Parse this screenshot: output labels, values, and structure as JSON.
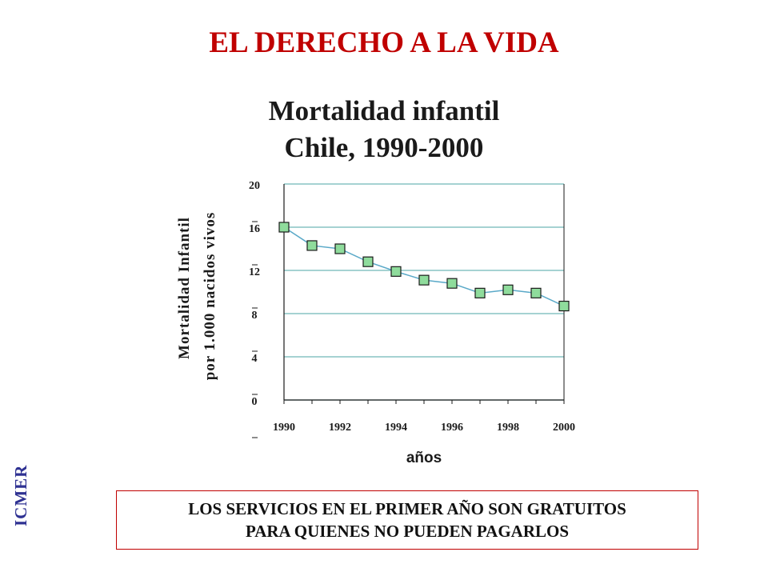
{
  "slide": {
    "title": "EL DERECHO A LA VIDA",
    "side_label": "ICMER",
    "note_line1": "LOS SERVICIOS EN EL PRIMER AÑO SON GRATUITOS",
    "note_line2": "PARA QUIENES NO PUEDEN PAGARLOS",
    "colors": {
      "title": "#c00000",
      "side_label": "#2e3192",
      "box_border": "#c00000"
    }
  },
  "chart_data": {
    "type": "line",
    "title_line1": "Mortalidad  infantil",
    "title_line2": "Chile, 1990-2000",
    "ylabel_line1": "Mortalidad Infantil",
    "ylabel_line2": "por 1.000 nacidos vivos",
    "xlabel": "años",
    "x": [
      1990,
      1991,
      1992,
      1993,
      1994,
      1995,
      1996,
      1997,
      1998,
      1999,
      2000
    ],
    "xticks": [
      "1990",
      "1992",
      "1994",
      "1996",
      "1998",
      "2000"
    ],
    "yticks": [
      "20",
      "16",
      "12",
      "8",
      "4",
      "0"
    ],
    "series": [
      {
        "values": [
          16.0,
          14.3,
          14.0,
          12.8,
          11.9,
          11.1,
          10.8,
          9.9,
          10.2,
          9.9,
          8.7
        ]
      }
    ],
    "xlim": [
      1990,
      2000
    ],
    "ylim": [
      0,
      20
    ],
    "grid": true,
    "colors": {
      "line": "#5aa9c8",
      "marker_fill": "#8fdc9c",
      "marker_edge": "#1a1a1a",
      "grid": "#6fb6b8"
    }
  }
}
